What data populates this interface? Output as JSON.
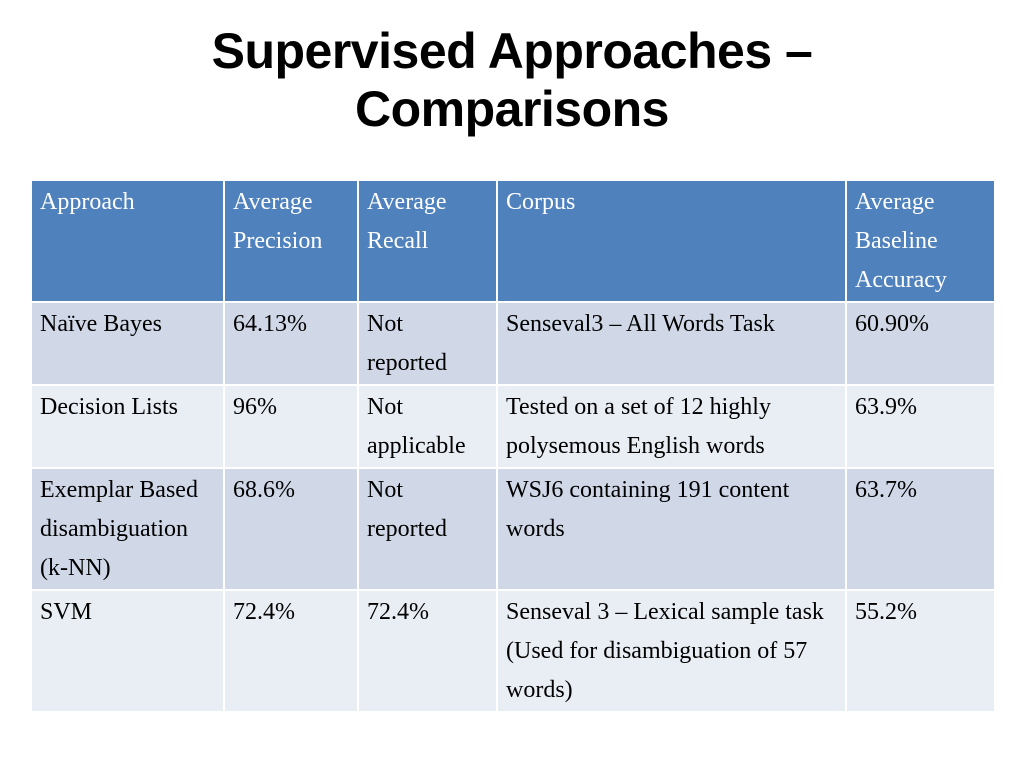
{
  "slide": {
    "title_line1": "Supervised Approaches –",
    "title_line2": "Comparisons"
  },
  "table": {
    "headers": [
      "Approach",
      "Average Precision",
      "Average Recall",
      "Corpus",
      "Average Baseline Accuracy"
    ],
    "rows": [
      [
        "Naïve Bayes",
        "64.13%",
        "Not reported",
        "Senseval3 – All Words Task",
        "60.90%"
      ],
      [
        "Decision Lists",
        "96%",
        "Not applicable",
        "Tested on a set of 12 highly polysemous English words",
        "63.9%"
      ],
      [
        "Exemplar Based disambiguation (k-NN)",
        "68.6%",
        "Not reported",
        "WSJ6 containing 191 content words",
        "63.7%"
      ],
      [
        "SVM",
        "72.4%",
        "72.4%",
        "Senseval 3 – Lexical sample task (Used for disambiguation of 57 words)",
        "55.2%"
      ]
    ]
  },
  "colors": {
    "header_bg": "#4f81bd",
    "row_odd_bg": "#d0d8e8",
    "row_even_bg": "#e9edf4"
  }
}
